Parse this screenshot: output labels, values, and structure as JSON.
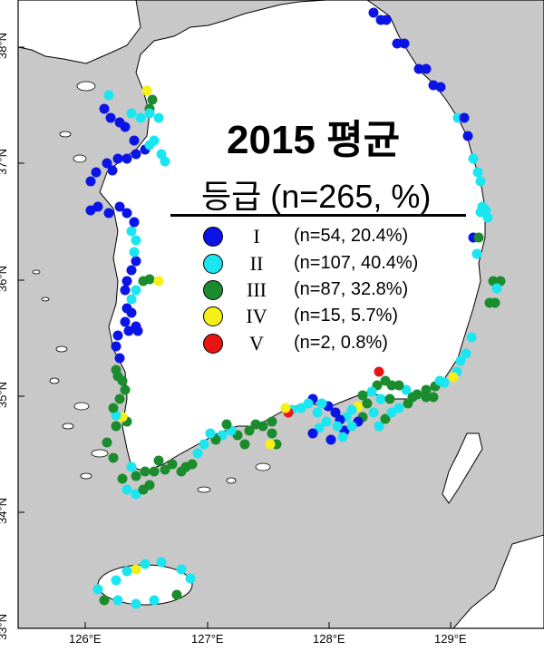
{
  "map": {
    "title": "2015 평균",
    "legend_title": "등급  (n=265, %)",
    "legend": [
      {
        "grade": "I",
        "count_label": "(n=54, 20.4%)",
        "color": "#0a14e6"
      },
      {
        "grade": "II",
        "count_label": "(n=107, 40.4%)",
        "color": "#19e6f0"
      },
      {
        "grade": "III",
        "count_label": "(n=87, 32.8%)",
        "color": "#1a8c2e"
      },
      {
        "grade": "IV",
        "count_label": "(n=15, 5.7%)",
        "color": "#f5f016"
      },
      {
        "grade": "V",
        "count_label": "(n=2, 0.8%)",
        "color": "#e81414"
      }
    ],
    "x_ticks": [
      "126°E",
      "127°E",
      "128°E",
      "129°E"
    ],
    "y_ticks": [
      "33°N",
      "34°N",
      "35°N",
      "36°N",
      "37°N",
      "38°N"
    ],
    "colors": {
      "sea": "#c8c8c8",
      "land": "#ffffff",
      "coast": "#000000"
    }
  }
}
